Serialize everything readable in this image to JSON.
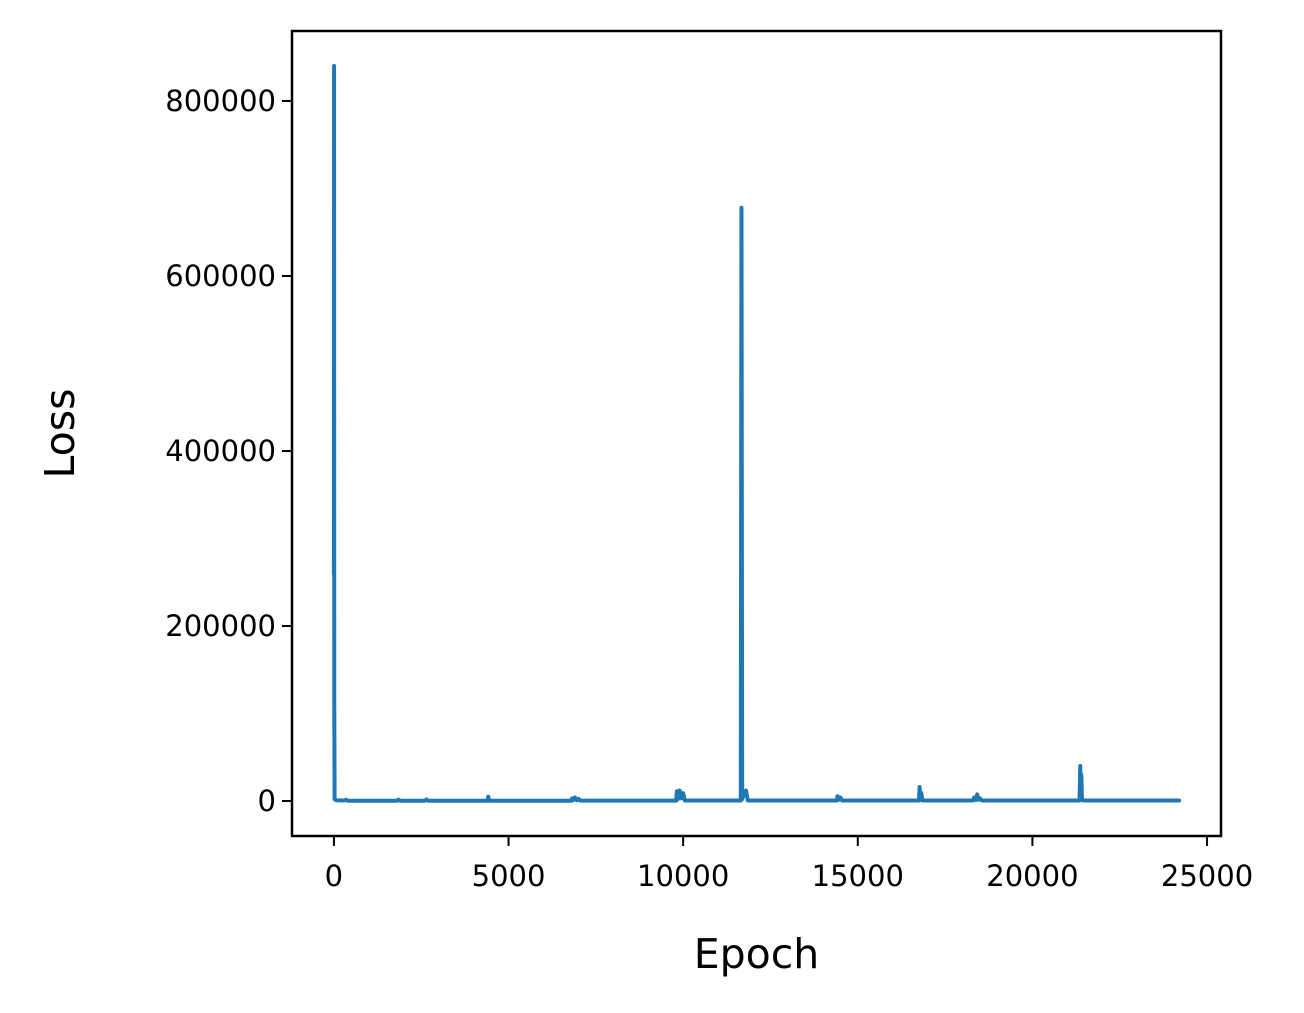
{
  "chart_data": {
    "type": "line",
    "title": "",
    "xlabel": "Epoch",
    "ylabel": "Loss",
    "xlim": [
      -1200,
      25400
    ],
    "ylim": [
      -40000,
      880000
    ],
    "xticks": [
      0,
      5000,
      10000,
      15000,
      20000,
      25000
    ],
    "yticks": [
      0,
      200000,
      400000,
      600000,
      800000
    ],
    "xtick_labels": [
      "0",
      "5000",
      "10000",
      "15000",
      "20000",
      "25000"
    ],
    "ytick_labels": [
      "0",
      "200000",
      "400000",
      "600000",
      "800000"
    ],
    "grid": false,
    "legend": "none",
    "colors": {
      "line": "#1f77b4",
      "axes": "#000000",
      "background": "#ffffff"
    },
    "series": [
      {
        "points": [
          [
            0,
            260000
          ],
          [
            5,
            840000
          ],
          [
            10,
            120000
          ],
          [
            20,
            2000
          ],
          [
            60,
            800
          ],
          [
            300,
            600
          ],
          [
            350,
            1500
          ],
          [
            400,
            300
          ],
          [
            1800,
            300
          ],
          [
            1850,
            1500
          ],
          [
            1900,
            300
          ],
          [
            2600,
            300
          ],
          [
            2650,
            1800
          ],
          [
            2700,
            300
          ],
          [
            4400,
            300
          ],
          [
            4420,
            5000
          ],
          [
            4440,
            600
          ],
          [
            4460,
            300
          ],
          [
            6800,
            300
          ],
          [
            6820,
            3000
          ],
          [
            6840,
            800
          ],
          [
            6900,
            4000
          ],
          [
            6950,
            900
          ],
          [
            7000,
            2500
          ],
          [
            7050,
            400
          ],
          [
            9800,
            400
          ],
          [
            9820,
            11000
          ],
          [
            9850,
            2000
          ],
          [
            9900,
            12000
          ],
          [
            9950,
            3000
          ],
          [
            10000,
            9000
          ],
          [
            10050,
            500
          ],
          [
            11650,
            500
          ],
          [
            11670,
            678000
          ],
          [
            11690,
            2000
          ],
          [
            11750,
            9000
          ],
          [
            11800,
            12000
          ],
          [
            11850,
            600
          ],
          [
            14400,
            600
          ],
          [
            14420,
            5500
          ],
          [
            14450,
            1200
          ],
          [
            14500,
            4000
          ],
          [
            14550,
            600
          ],
          [
            16750,
            600
          ],
          [
            16770,
            16000
          ],
          [
            16790,
            2000
          ],
          [
            16820,
            9000
          ],
          [
            16850,
            600
          ],
          [
            18300,
            600
          ],
          [
            18330,
            4000
          ],
          [
            18380,
            1200
          ],
          [
            18420,
            7500
          ],
          [
            18450,
            1500
          ],
          [
            18500,
            3000
          ],
          [
            18550,
            600
          ],
          [
            21350,
            600
          ],
          [
            21370,
            40000
          ],
          [
            21380,
            3000
          ],
          [
            21400,
            30000
          ],
          [
            21420,
            2000
          ],
          [
            21450,
            600
          ],
          [
            24200,
            600
          ]
        ]
      }
    ]
  }
}
